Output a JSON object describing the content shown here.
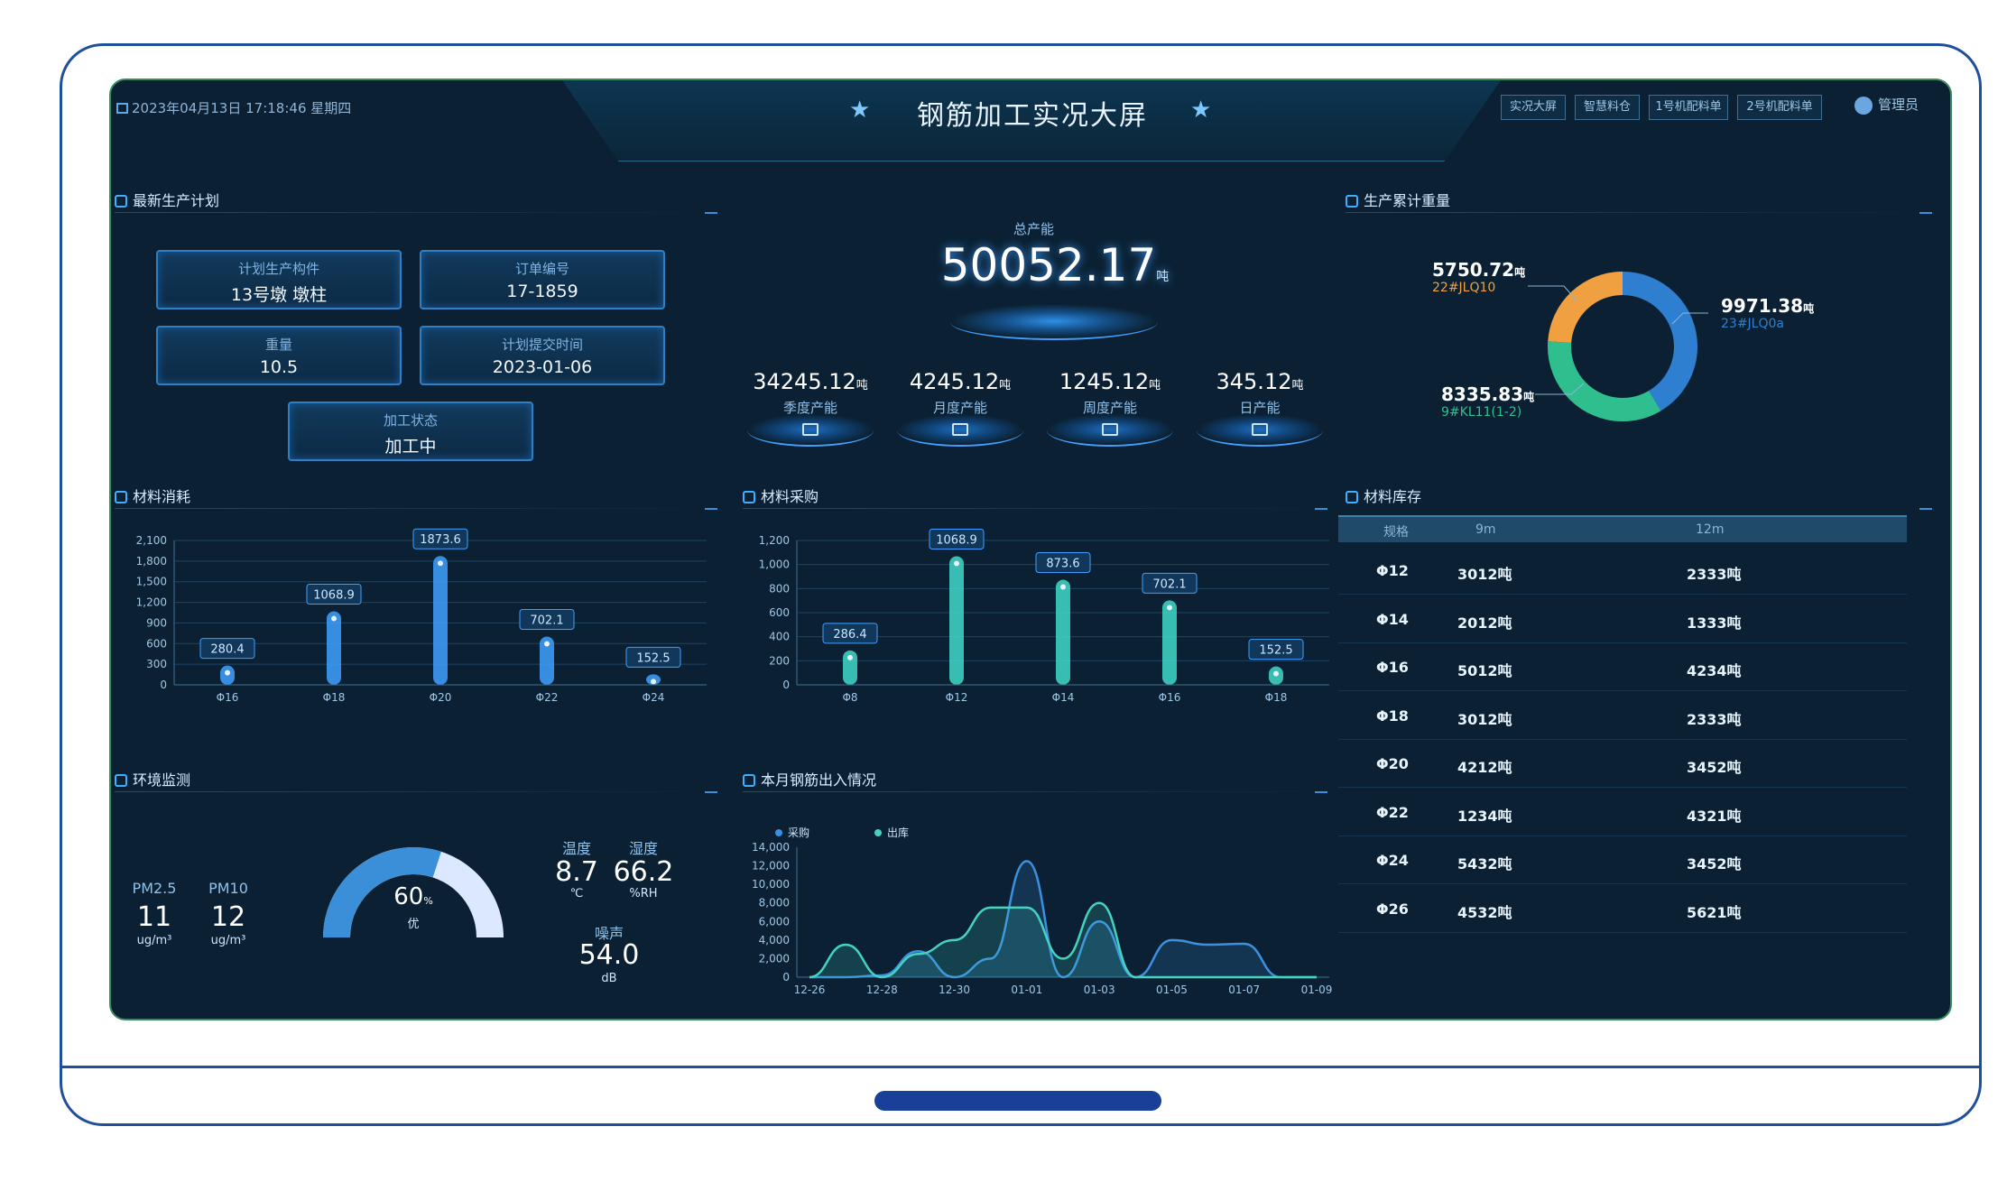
{
  "header": {
    "title": "钢筋加工实况大屏",
    "datetime": "2023年04月13日 17:18:46 星期四",
    "nav": [
      "实况大屏",
      "智慧料仓",
      "1号机配料单",
      "2号机配料单"
    ],
    "user": "管理员"
  },
  "plan": {
    "title": "最新生产计划",
    "items": [
      {
        "label": "计划生产构件",
        "value": "13号墩 墩柱"
      },
      {
        "label": "订单编号",
        "value": "17-1859"
      },
      {
        "label": "重量",
        "value": "10.5"
      },
      {
        "label": "计划提交时间",
        "value": "2023-01-06"
      },
      {
        "label": "加工状态",
        "value": "加工中"
      }
    ]
  },
  "capacity": {
    "total_label": "总产能",
    "total_value": "50052.17",
    "unit": "吨",
    "items": [
      {
        "value": "34245.12",
        "label": "季度产能"
      },
      {
        "value": "4245.12",
        "label": "月度产能"
      },
      {
        "value": "1245.12",
        "label": "周度产能"
      },
      {
        "value": "345.12",
        "label": "日产能"
      }
    ]
  },
  "weight": {
    "title": "生产累计重量",
    "unit": "吨",
    "entries": [
      {
        "value": "5750.72",
        "name": "22#JLQ10",
        "color": "#f0a040",
        "share": 5750.72
      },
      {
        "value": "9971.38",
        "name": "23#JLQ0a",
        "color": "#2f7fd0",
        "share": 9971.38
      },
      {
        "value": "8335.83",
        "name": "9#KL11(1-2)",
        "color": "#2fbf8f",
        "share": 8335.83
      }
    ]
  },
  "consumption": {
    "title": "材料消耗",
    "chart_data": {
      "type": "bar",
      "categories": [
        "Φ16",
        "Φ18",
        "Φ20",
        "Φ22",
        "Φ24"
      ],
      "values": [
        280.4,
        1068.9,
        1873.6,
        702.1,
        152.5
      ],
      "labels": [
        "280.4",
        "1068.9",
        "1873.6",
        "702.1",
        "152.5"
      ],
      "yticks": [
        "0",
        "300",
        "600",
        "900",
        "1,200",
        "1,500",
        "1,800",
        "2,100"
      ],
      "ylim": [
        0,
        2100
      ],
      "color": "#3fa0ff"
    }
  },
  "purchase": {
    "title": "材料采购",
    "chart_data": {
      "type": "bar",
      "categories": [
        "Φ8",
        "Φ12",
        "Φ14",
        "Φ16",
        "Φ18"
      ],
      "values": [
        286.4,
        1068.9,
        873.6,
        702.1,
        152.5
      ],
      "labels": [
        "286.4",
        "1068.9",
        "873.6",
        "702.1",
        "152.5"
      ],
      "yticks": [
        "0",
        "200",
        "400",
        "600",
        "800",
        "1,000",
        "1,200"
      ],
      "ylim": [
        0,
        1200
      ],
      "color": "#3fd8c8"
    }
  },
  "stock": {
    "title": "材料库存",
    "headers": [
      "规格",
      "9m",
      "12m"
    ],
    "rows": [
      [
        "Φ12",
        "3012吨",
        "2333吨"
      ],
      [
        "Φ14",
        "2012吨",
        "1333吨"
      ],
      [
        "Φ16",
        "5012吨",
        "4234吨"
      ],
      [
        "Φ18",
        "3012吨",
        "2333吨"
      ],
      [
        "Φ20",
        "4212吨",
        "3452吨"
      ],
      [
        "Φ22",
        "1234吨",
        "4321吨"
      ],
      [
        "Φ24",
        "5432吨",
        "3452吨"
      ],
      [
        "Φ26",
        "4532吨",
        "5621吨"
      ]
    ]
  },
  "env": {
    "title": "环境监测",
    "pm25": {
      "label": "PM2.5",
      "value": "11",
      "unit": "ug/m³"
    },
    "pm10": {
      "label": "PM10",
      "value": "12",
      "unit": "ug/m³"
    },
    "aqi": {
      "value": "60",
      "unit": "%",
      "grade": "优",
      "level": 0.6
    },
    "temp": {
      "label": "温度",
      "value": "8.7",
      "unit": "℃"
    },
    "humidity": {
      "label": "湿度",
      "value": "66.2",
      "unit": "%RH"
    },
    "noise": {
      "label": "噪声",
      "value": "54.0",
      "unit": "dB"
    }
  },
  "flow": {
    "title": "本月钢筋出入情况",
    "chart_data": {
      "type": "area",
      "x": [
        "12-26",
        "12-27",
        "12-28",
        "12-29",
        "12-30",
        "12-31",
        "01-01",
        "01-02",
        "01-03",
        "01-04",
        "01-05",
        "01-06",
        "01-07",
        "01-08",
        "01-09"
      ],
      "xticks": [
        "12-26",
        "12-28",
        "12-30",
        "01-01",
        "01-03",
        "01-05",
        "01-07",
        "01-09"
      ],
      "yticks": [
        "0",
        "2,000",
        "4,000",
        "6,000",
        "8,000",
        "10,000",
        "12,000",
        "14,000"
      ],
      "ylim": [
        0,
        14000
      ],
      "series": [
        {
          "name": "采购",
          "color": "#3d8fe0",
          "values": [
            0,
            0,
            200,
            2800,
            0,
            2000,
            12500,
            0,
            6000,
            0,
            4000,
            3500,
            3600,
            0,
            0
          ]
        },
        {
          "name": "出库",
          "color": "#45d3c0",
          "values": [
            0,
            3500,
            0,
            2500,
            4000,
            7500,
            7500,
            2000,
            8000,
            0,
            0,
            0,
            0,
            0,
            0
          ]
        }
      ]
    }
  }
}
